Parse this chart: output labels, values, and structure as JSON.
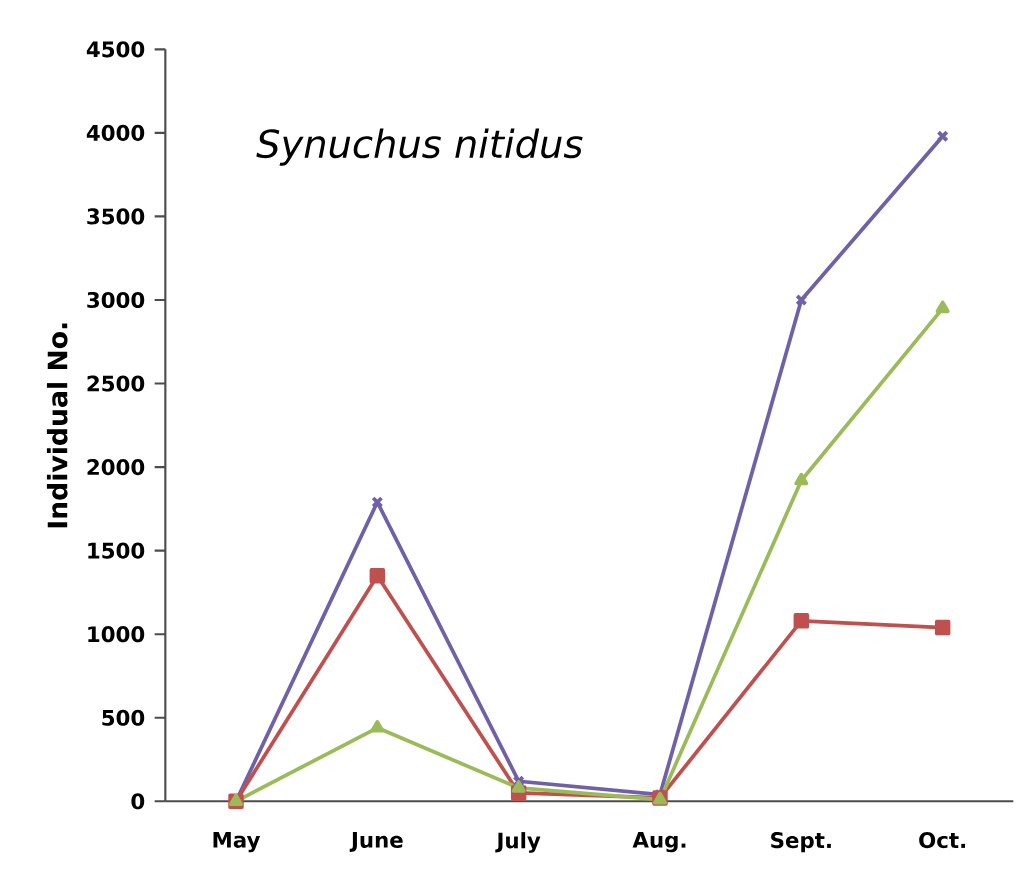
{
  "chart_data": {
    "type": "line",
    "title": "Synuchus nitidus",
    "ylabel": "Individual No.",
    "categories": [
      "May",
      "June",
      "July",
      "Aug.",
      "Sept.",
      "Oct."
    ],
    "series": [
      {
        "color": "#7060a8",
        "marker": "cross",
        "values": [
          0,
          1790,
          120,
          40,
          3000,
          3980
        ]
      },
      {
        "color": "#c0504d",
        "marker": "square",
        "values": [
          0,
          1350,
          50,
          20,
          1080,
          1040
        ]
      },
      {
        "color": "#9bbb59",
        "marker": "triangle",
        "values": [
          0,
          440,
          80,
          10,
          1920,
          2950
        ]
      }
    ],
    "ylim": [
      0,
      4500
    ],
    "yticks": [
      0,
      500,
      1000,
      1500,
      2000,
      2500,
      3000,
      3500,
      4000,
      4500
    ],
    "grid": false,
    "line_style": "solid"
  }
}
